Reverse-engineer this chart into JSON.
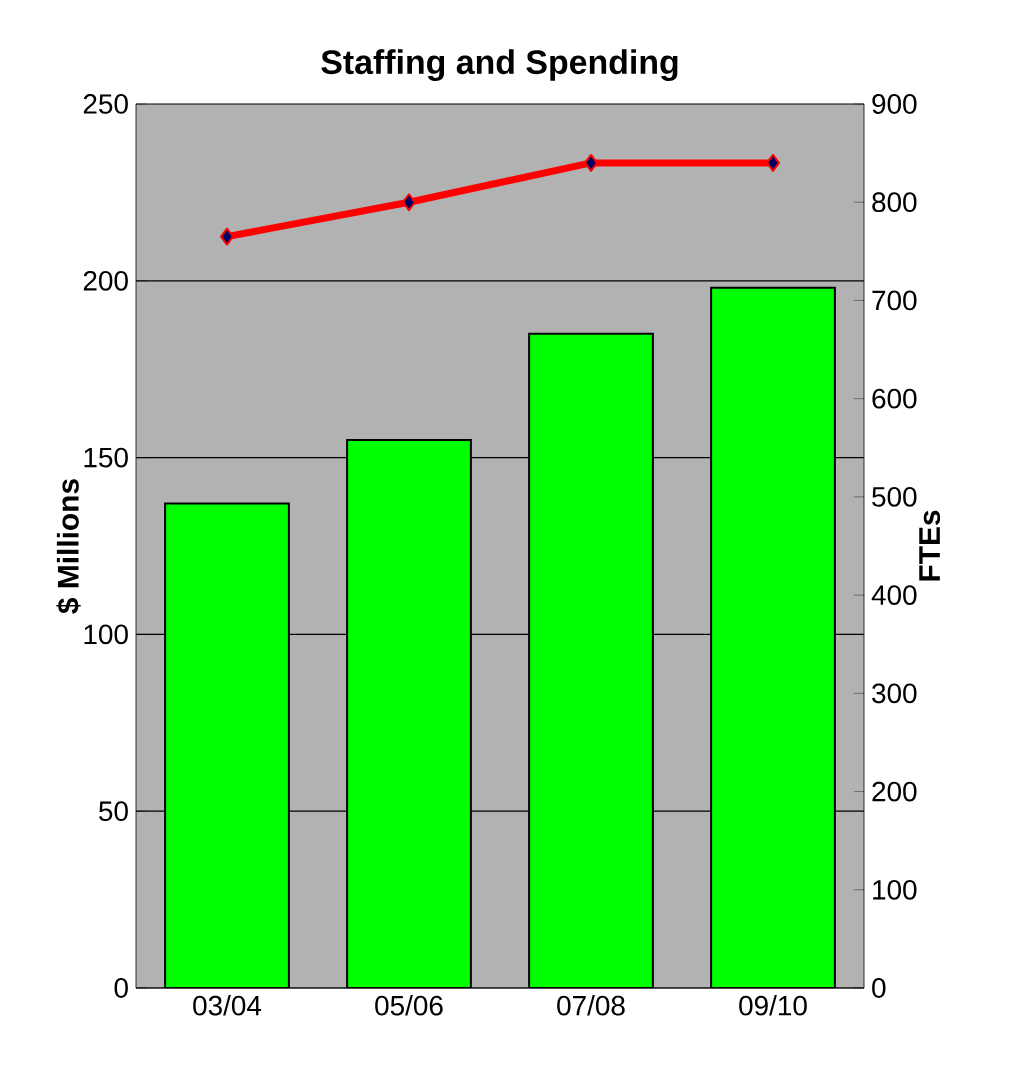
{
  "chart_data": {
    "type": "bar",
    "title": "Staffing and Spending",
    "ylabel": "$ Millions",
    "y2label": "FTEs",
    "categories": [
      "03/04",
      "05/06",
      "07/08",
      "09/10"
    ],
    "series": [
      {
        "color": "#00ff00",
        "values": [
          137,
          155,
          185,
          198
        ]
      },
      {
        "type": "line",
        "axis": "y2",
        "color": "#ff0000",
        "values": [
          765,
          800,
          840,
          840
        ]
      }
    ],
    "ylim": [
      0,
      250
    ],
    "yticks": [
      0,
      50,
      100,
      150,
      200,
      250
    ],
    "y2lim": [
      0,
      900
    ],
    "y2ticks": [
      0,
      100,
      200,
      300,
      400,
      500,
      600,
      700,
      800,
      900
    ],
    "grid": "y",
    "marker": "diamond"
  }
}
